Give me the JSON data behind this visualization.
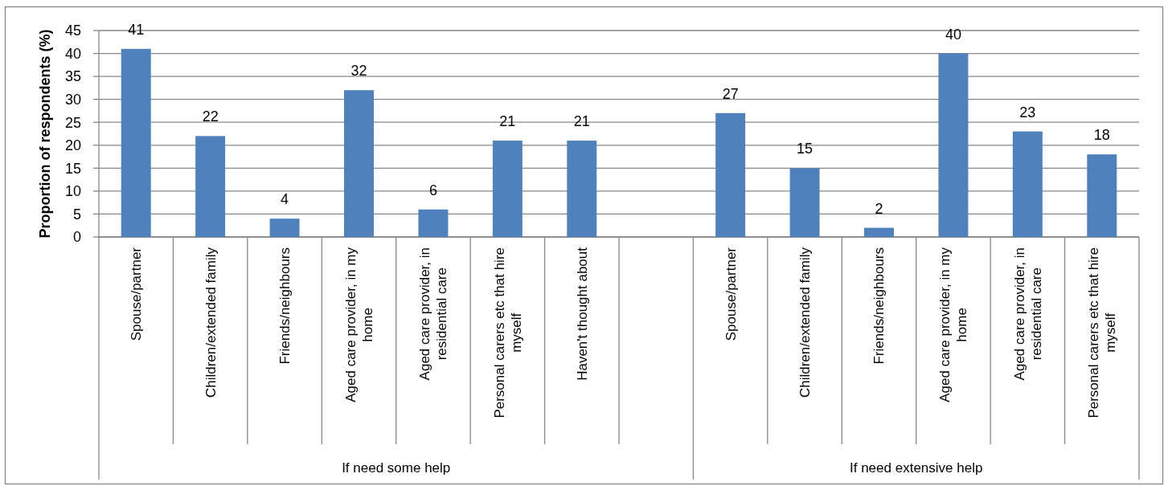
{
  "chart_data": {
    "type": "bar",
    "ylabel": "Proportion of respondents (%)",
    "categories": [
      "Spouse/partner",
      "Children/extended family",
      "Friends/neighbours",
      "Aged care provider, in my home",
      "Aged care provider, in residential care",
      "Personal carers etc that hire myself",
      "Haven't thought about",
      null,
      "Spouse/partner",
      "Children/extended family",
      "Friends/neighbours",
      "Aged care provider, in my home",
      "Aged care provider, in residential care",
      "Personal carers etc that hire myself"
    ],
    "values": [
      41,
      22,
      4,
      32,
      6,
      21,
      21,
      null,
      27,
      15,
      2,
      40,
      23,
      18
    ],
    "color": "#4f81bd",
    "data_labels": true,
    "ylim": [
      0,
      45
    ],
    "yticks": [
      0,
      5,
      10,
      15,
      20,
      25,
      30,
      35,
      40,
      45
    ],
    "grid": "y",
    "annotations": [
      "If need some help",
      "If need extensive help"
    ]
  }
}
